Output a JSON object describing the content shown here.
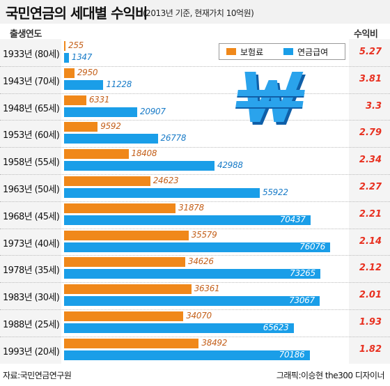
{
  "header": {
    "title": "국민연금의 세대별 수익비",
    "subtitle": "(2013년 기준, 현재가치 10억원)",
    "year_col": "출생연도",
    "ratio_col": "수익비"
  },
  "legend": {
    "premium": "보험료",
    "benefit": "연금급여"
  },
  "icon": "won-currency-icon",
  "colors": {
    "premium": "#f0881a",
    "benefit": "#1a9ee8",
    "ratio": "#e83020"
  },
  "chart_data": {
    "type": "bar",
    "orientation": "horizontal",
    "categories": [
      "1933년 (80세)",
      "1943년 (70세)",
      "1948년 (65세)",
      "1953년 (60세)",
      "1958년 (55세)",
      "1963년 (50세)",
      "1968년 (45세)",
      "1973년 (40세)",
      "1978년 (35세)",
      "1983년 (30세)",
      "1988년 (25세)",
      "1993년 (20세)"
    ],
    "series": [
      {
        "name": "보험료",
        "values": [
          255,
          2950,
          6331,
          9592,
          18408,
          24623,
          31878,
          35579,
          34626,
          36361,
          34070,
          38492
        ]
      },
      {
        "name": "연금급여",
        "values": [
          1347,
          11228,
          20907,
          26778,
          42988,
          55922,
          70437,
          76076,
          73265,
          73067,
          65623,
          70186
        ]
      }
    ],
    "ratios": [
      "5.27",
      "3.81",
      "3.3",
      "2.79",
      "2.34",
      "2.27",
      "2.21",
      "2.14",
      "2.12",
      "2.01",
      "1.93",
      "1.82"
    ],
    "xlim": [
      0,
      80000
    ]
  },
  "footer": {
    "source": "자료:국민연금연구원",
    "credit": "그래픽:이승현 the300 디자이너"
  }
}
